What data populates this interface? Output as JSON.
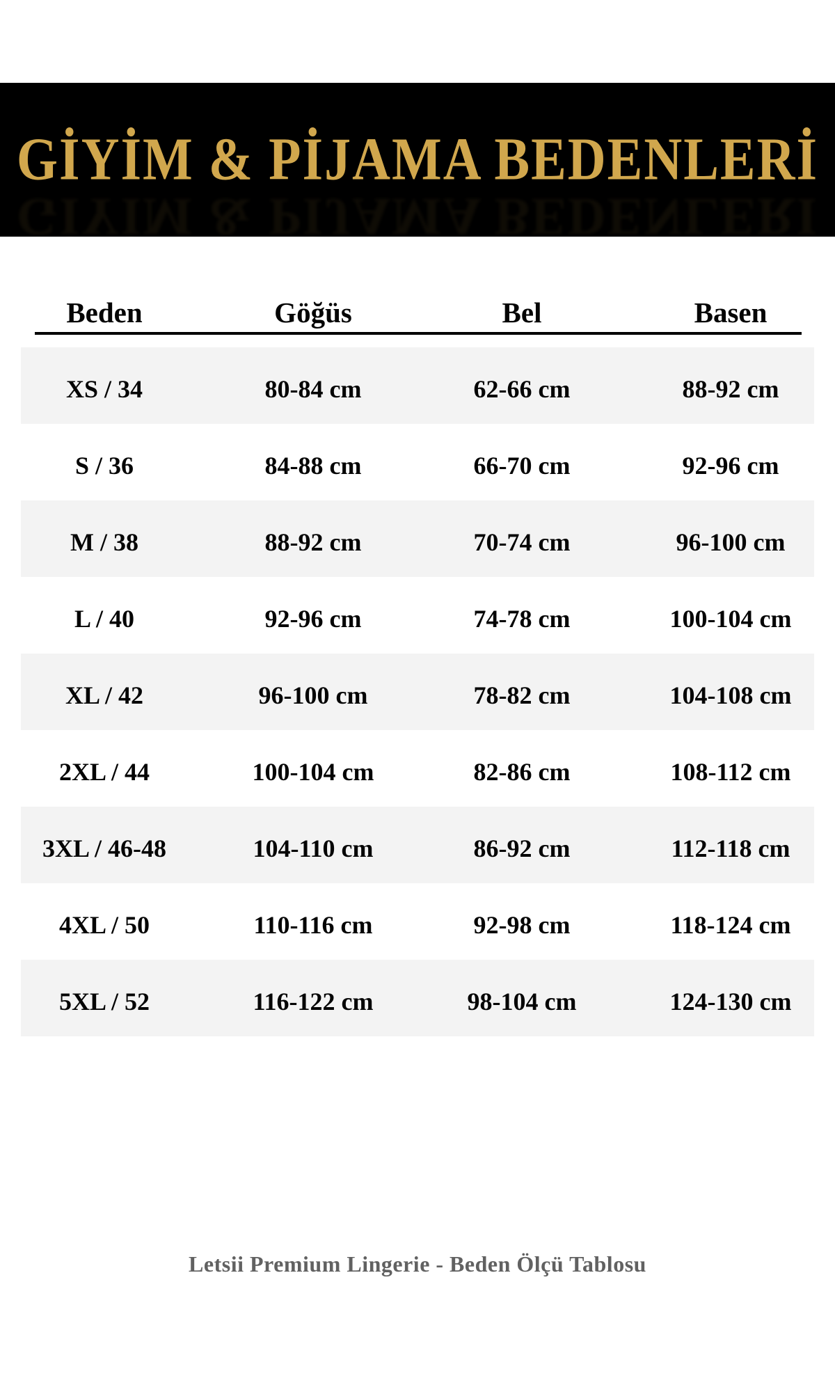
{
  "banner": {
    "bg_color": "#000000",
    "title_color": "#d1a74d"
  },
  "chart_data": {
    "type": "table",
    "title": "GİYİM & PİJAMA BEDENLERİ",
    "columns": [
      "Beden",
      "Göğüs",
      "Bel",
      "Basen"
    ],
    "rows": [
      [
        "XS / 34",
        "80-84 cm",
        "62-66 cm",
        "88-92 cm"
      ],
      [
        "S / 36",
        "84-88 cm",
        "66-70 cm",
        "92-96 cm"
      ],
      [
        "M / 38",
        "88-92 cm",
        "70-74 cm",
        "96-100 cm"
      ],
      [
        "L / 40",
        "92-96 cm",
        "74-78 cm",
        "100-104 cm"
      ],
      [
        "XL / 42",
        "96-100 cm",
        "78-82 cm",
        "104-108 cm"
      ],
      [
        "2XL / 44",
        "100-104 cm",
        "82-86 cm",
        "108-112 cm"
      ],
      [
        "3XL / 46-48",
        "104-110 cm",
        "86-92 cm",
        "112-118 cm"
      ],
      [
        "4XL / 50",
        "110-116 cm",
        "92-98 cm",
        "118-124 cm"
      ],
      [
        "5XL / 52",
        "116-122 cm",
        "98-104 cm",
        "124-130 cm"
      ]
    ],
    "caption": "Letsii Premium Lingerie - Beden Ölçü Tablosu",
    "layout": {
      "striped_rows": "odd",
      "stripe_color": "#f3f3f3",
      "grid": "off",
      "header_underline": true,
      "text_color": "#050505",
      "caption_color": "#616161"
    }
  }
}
